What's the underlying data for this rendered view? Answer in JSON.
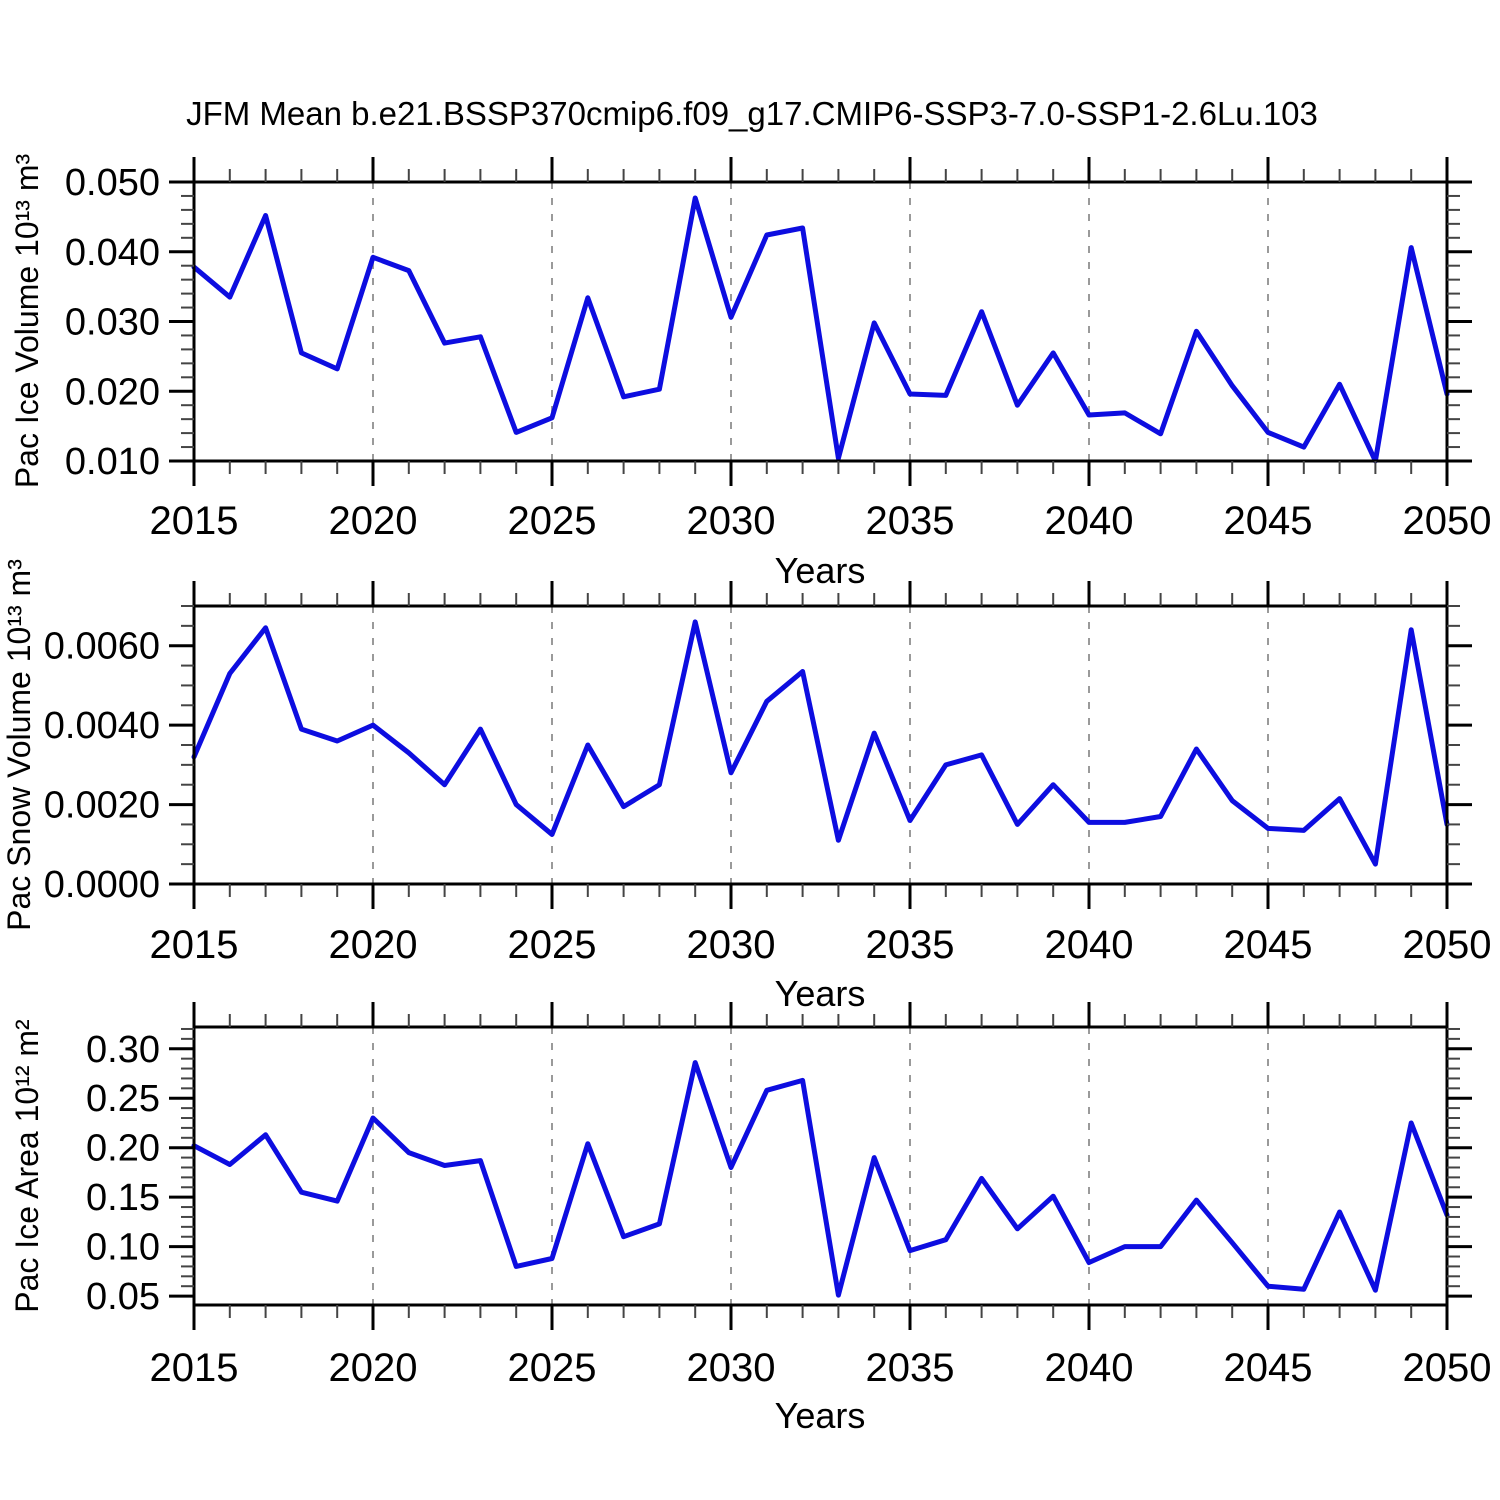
{
  "title": "JFM Mean b.e21.BSSP370cmip6.f09_g17.CMIP6-SSP3-7.0-SSP1-2.6Lu.103",
  "colors": {
    "line": "#0d0de0",
    "axis": "#000000",
    "grid": "#9a9a9a",
    "minor_tick": "#444444"
  },
  "chart_data": [
    {
      "type": "line",
      "ylabel": "Pac Ice Volume 10¹³ m³",
      "xlabel": "Years",
      "x": [
        2015,
        2016,
        2017,
        2018,
        2019,
        2020,
        2021,
        2022,
        2023,
        2024,
        2025,
        2026,
        2027,
        2028,
        2029,
        2030,
        2031,
        2032,
        2033,
        2034,
        2035,
        2036,
        2037,
        2038,
        2039,
        2040,
        2041,
        2042,
        2043,
        2044,
        2045,
        2046,
        2047,
        2048,
        2049,
        2050
      ],
      "values": [
        0.0378,
        0.0335,
        0.0452,
        0.0255,
        0.0232,
        0.0392,
        0.0373,
        0.0269,
        0.0278,
        0.0141,
        0.0162,
        0.0334,
        0.0192,
        0.0203,
        0.0477,
        0.0306,
        0.0424,
        0.0434,
        0.0104,
        0.0298,
        0.0196,
        0.0194,
        0.0314,
        0.018,
        0.0255,
        0.0166,
        0.0169,
        0.0139,
        0.0286,
        0.0208,
        0.0141,
        0.012,
        0.021,
        0.01,
        0.0406,
        0.0196
      ],
      "xlim": [
        2015,
        2050
      ],
      "ylim": [
        0.01,
        0.05
      ],
      "xticks": [
        2015,
        2020,
        2025,
        2030,
        2035,
        2040,
        2045,
        2050
      ],
      "xtick_labels": [
        "2015",
        "2020",
        "2025",
        "2030",
        "2035",
        "2040",
        "2045",
        "2050"
      ],
      "xminor_step": 1,
      "yticks": [
        0.01,
        0.02,
        0.03,
        0.04,
        0.05
      ],
      "ytick_labels": [
        "0.010",
        "0.020",
        "0.030",
        "0.040",
        "0.050"
      ],
      "yminor_step": 0.002,
      "grid_x": [
        2020,
        2025,
        2030,
        2035,
        2040,
        2045
      ],
      "grid": "dashed-vertical",
      "legend": "none",
      "line_color": "#0d0de0"
    },
    {
      "type": "line",
      "ylabel": "Pac Snow Volume 10¹³ m³",
      "xlabel": "Years",
      "x": [
        2015,
        2016,
        2017,
        2018,
        2019,
        2020,
        2021,
        2022,
        2023,
        2024,
        2025,
        2026,
        2027,
        2028,
        2029,
        2030,
        2031,
        2032,
        2033,
        2034,
        2035,
        2036,
        2037,
        2038,
        2039,
        2040,
        2041,
        2042,
        2043,
        2044,
        2045,
        2046,
        2047,
        2048,
        2049,
        2050
      ],
      "values": [
        0.0032,
        0.0053,
        0.00645,
        0.0039,
        0.0036,
        0.004,
        0.0033,
        0.0025,
        0.0039,
        0.002,
        0.00125,
        0.0035,
        0.00195,
        0.0025,
        0.0066,
        0.0028,
        0.0046,
        0.00535,
        0.0011,
        0.0038,
        0.0016,
        0.003,
        0.00325,
        0.0015,
        0.0025,
        0.00155,
        0.00155,
        0.0017,
        0.0034,
        0.0021,
        0.0014,
        0.00135,
        0.00215,
        0.0005,
        0.0064,
        0.0015
      ],
      "xlim": [
        2015,
        2050
      ],
      "ylim": [
        0.0,
        0.007
      ],
      "xticks": [
        2015,
        2020,
        2025,
        2030,
        2035,
        2040,
        2045,
        2050
      ],
      "xtick_labels": [
        "2015",
        "2020",
        "2025",
        "2030",
        "2035",
        "2040",
        "2045",
        "2050"
      ],
      "xminor_step": 1,
      "yticks": [
        0.0,
        0.002,
        0.004,
        0.006
      ],
      "ytick_labels": [
        "0.0000",
        "0.0020",
        "0.0040",
        "0.0060"
      ],
      "yminor_step": 0.0005,
      "grid_x": [
        2020,
        2025,
        2030,
        2035,
        2040,
        2045
      ],
      "grid": "dashed-vertical",
      "legend": "none",
      "line_color": "#0d0de0"
    },
    {
      "type": "line",
      "ylabel": "Pac Ice Area 10¹² m²",
      "xlabel": "Years",
      "x": [
        2015,
        2016,
        2017,
        2018,
        2019,
        2020,
        2021,
        2022,
        2023,
        2024,
        2025,
        2026,
        2027,
        2028,
        2029,
        2030,
        2031,
        2032,
        2033,
        2034,
        2035,
        2036,
        2037,
        2038,
        2039,
        2040,
        2041,
        2042,
        2043,
        2044,
        2045,
        2046,
        2047,
        2048,
        2049,
        2050
      ],
      "values": [
        0.202,
        0.183,
        0.213,
        0.155,
        0.146,
        0.23,
        0.195,
        0.182,
        0.187,
        0.08,
        0.088,
        0.204,
        0.11,
        0.123,
        0.286,
        0.18,
        0.258,
        0.268,
        0.051,
        0.19,
        0.096,
        0.107,
        0.169,
        0.118,
        0.151,
        0.084,
        0.1,
        0.1,
        0.147,
        0.104,
        0.06,
        0.057,
        0.135,
        0.056,
        0.225,
        0.132
      ],
      "xlim": [
        2015,
        2050
      ],
      "ylim": [
        0.041,
        0.322
      ],
      "xticks": [
        2015,
        2020,
        2025,
        2030,
        2035,
        2040,
        2045,
        2050
      ],
      "xtick_labels": [
        "2015",
        "2020",
        "2025",
        "2030",
        "2035",
        "2040",
        "2045",
        "2050"
      ],
      "xminor_step": 1,
      "yticks": [
        0.05,
        0.1,
        0.15,
        0.2,
        0.25,
        0.3
      ],
      "ytick_labels": [
        "0.05",
        "0.10",
        "0.15",
        "0.20",
        "0.25",
        "0.30"
      ],
      "yminor_step": 0.01,
      "grid_x": [
        2020,
        2025,
        2030,
        2035,
        2040,
        2045
      ],
      "grid": "dashed-vertical",
      "legend": "none",
      "line_color": "#0d0de0"
    }
  ]
}
